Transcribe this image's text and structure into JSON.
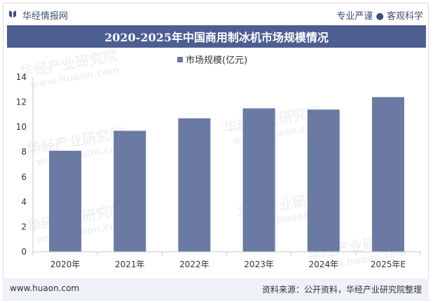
{
  "header": {
    "brand": "华经情报网",
    "tagline": "专业严谨 ● 客观科学"
  },
  "chart_title": "2020-2025年中国商用制冰机市场规模情况",
  "footer": {
    "site": "www.huaon.com",
    "source": "资料来源：公开资料，华经产业研究院整理"
  },
  "colors": {
    "bar": "#6b7aa3",
    "title_bg": "#4d5e91",
    "footer_bg": "#eef1f6"
  },
  "watermark": {
    "text": "华经产业研究院",
    "url": "www.huaon.com"
  },
  "chart_data": {
    "type": "bar",
    "categories": [
      "2020年",
      "2021年",
      "2022年",
      "2023年",
      "2024年",
      "2025年E"
    ],
    "series": [
      {
        "name": "市场规模(亿元)",
        "values": [
          8.1,
          9.7,
          10.7,
          11.5,
          11.4,
          12.4
        ]
      }
    ],
    "title": "",
    "xlabel": "",
    "ylabel": "",
    "ylim": [
      0,
      14
    ],
    "yticks": [
      0,
      2,
      4,
      6,
      8,
      10,
      12,
      14
    ],
    "grid": false,
    "legend": "top-center"
  }
}
